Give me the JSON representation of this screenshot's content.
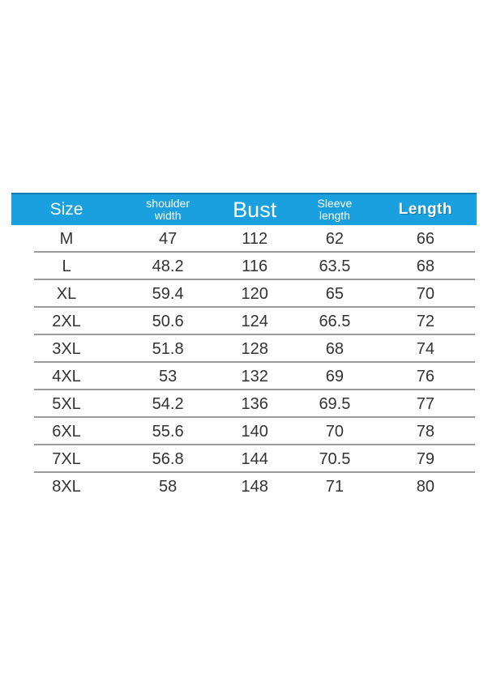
{
  "colors": {
    "header_bg": "#1a9fdf",
    "header_top_border": "#1479b2",
    "header_text": "#ffffff",
    "row_text": "#333333",
    "separator": "#9c9c9c",
    "page_bg": "#ffffff"
  },
  "table": {
    "headers": {
      "size": "Size",
      "shoulder_line1": "shoulder",
      "shoulder_line2": "width",
      "bust": "Bust",
      "sleeve_line1": "Sleeve",
      "sleeve_line2": "length",
      "length": "Length"
    },
    "rows": [
      [
        "M",
        "47",
        "112",
        "62",
        "66"
      ],
      [
        "L",
        "48.2",
        "116",
        "63.5",
        "68"
      ],
      [
        "XL",
        "59.4",
        "120",
        "65",
        "70"
      ],
      [
        "2XL",
        "50.6",
        "124",
        "66.5",
        "72"
      ],
      [
        "3XL",
        "51.8",
        "128",
        "68",
        "74"
      ],
      [
        "4XL",
        "53",
        "132",
        "69",
        "76"
      ],
      [
        "5XL",
        "54.2",
        "136",
        "69.5",
        "77"
      ],
      [
        "6XL",
        "55.6",
        "140",
        "70",
        "78"
      ],
      [
        "7XL",
        "56.8",
        "144",
        "70.5",
        "79"
      ],
      [
        "8XL",
        "58",
        "148",
        "71",
        "80"
      ]
    ]
  },
  "chart_data": {
    "type": "table",
    "title": "Garment size chart",
    "columns": [
      "Size",
      "shoulder width",
      "Bust",
      "Sleeve length",
      "Length"
    ],
    "rows": [
      [
        "M",
        47,
        112,
        62,
        66
      ],
      [
        "L",
        48.2,
        116,
        63.5,
        68
      ],
      [
        "XL",
        59.4,
        120,
        65,
        70
      ],
      [
        "2XL",
        50.6,
        124,
        66.5,
        72
      ],
      [
        "3XL",
        51.8,
        128,
        68,
        74
      ],
      [
        "4XL",
        53,
        132,
        69,
        76
      ],
      [
        "5XL",
        54.2,
        136,
        69.5,
        77
      ],
      [
        "6XL",
        55.6,
        140,
        70,
        78
      ],
      [
        "7XL",
        56.8,
        144,
        70.5,
        79
      ],
      [
        "8XL",
        58,
        148,
        71,
        80
      ]
    ]
  }
}
